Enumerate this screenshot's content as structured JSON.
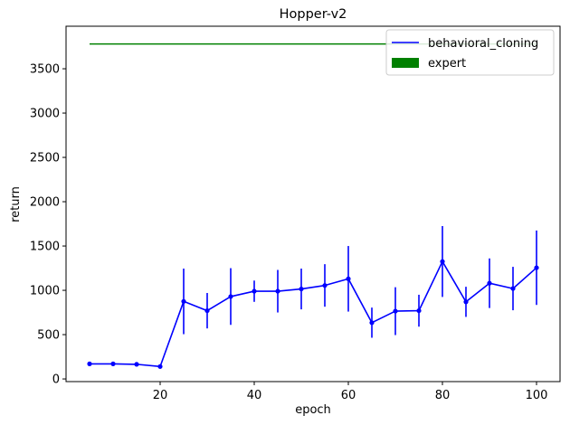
{
  "chart_data": {
    "type": "line",
    "title": "Hopper-v2",
    "xlabel": "epoch",
    "ylabel": "return",
    "xlim": [
      0,
      105
    ],
    "ylim": [
      -30,
      3980
    ],
    "xticks": [
      20,
      40,
      60,
      80,
      100
    ],
    "yticks": [
      0,
      500,
      1000,
      1500,
      2000,
      2500,
      3000,
      3500
    ],
    "grid": false,
    "legend_position": "top-right",
    "series": [
      {
        "name": "behavioral_cloning",
        "color": "#0000ff",
        "marker": "dot",
        "x": [
          5,
          10,
          15,
          20,
          25,
          30,
          35,
          40,
          45,
          50,
          55,
          60,
          65,
          70,
          75,
          80,
          85,
          90,
          95,
          100
        ],
        "values": [
          170,
          170,
          165,
          140,
          875,
          770,
          930,
          990,
          990,
          1015,
          1055,
          1130,
          635,
          765,
          770,
          1325,
          870,
          1080,
          1020,
          1255
        ],
        "error": [
          0,
          0,
          0,
          0,
          370,
          200,
          320,
          120,
          240,
          230,
          240,
          370,
          170,
          270,
          180,
          400,
          170,
          280,
          245,
          420
        ]
      },
      {
        "name": "expert",
        "color": "#008000",
        "type": "hline",
        "x": [
          5,
          100
        ],
        "values": [
          3780,
          3780
        ]
      }
    ]
  }
}
